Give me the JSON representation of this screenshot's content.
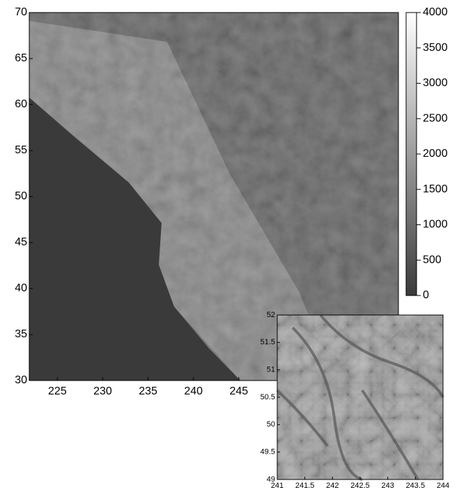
{
  "chart_data": [
    {
      "type": "image",
      "xlim": [
        221.9,
        262.6
      ],
      "ylim": [
        30,
        70
      ],
      "xticks": [
        225,
        230,
        235,
        240,
        245
      ],
      "yticks": [
        30,
        35,
        40,
        45,
        50,
        55,
        60,
        65,
        70
      ],
      "colorbar": {
        "lim": [
          0,
          4000
        ],
        "ticks": [
          0,
          500,
          1000,
          1500,
          2000,
          2500,
          3000,
          3500,
          4000
        ],
        "colors": [
          "#3a3a3a",
          "#ffffff"
        ]
      }
    },
    {
      "type": "image",
      "xlim": [
        241,
        244
      ],
      "ylim": [
        49,
        52
      ],
      "xticks": [
        241,
        241.5,
        242,
        242.5,
        243,
        243.5,
        244
      ],
      "yticks": [
        49,
        49.5,
        50,
        50.5,
        51,
        51.5,
        52
      ]
    }
  ]
}
